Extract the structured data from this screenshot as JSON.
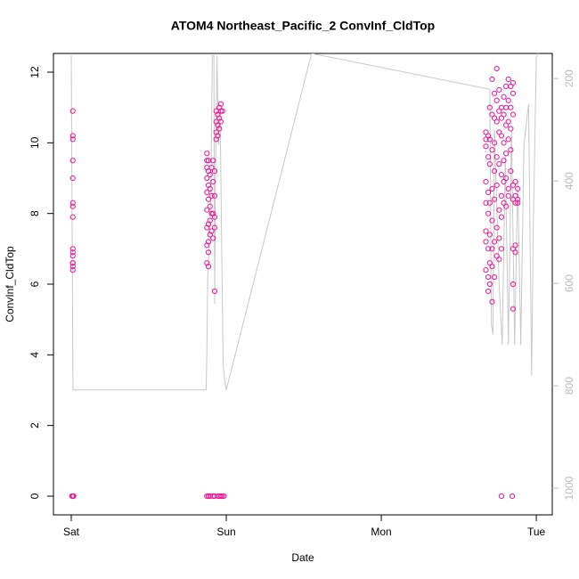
{
  "chart_data": {
    "type": "scatter",
    "title": "ATOM4 Northeast_Pacific_2 ConvInf_CldTop",
    "x_label": "Date",
    "y_label": "ConvInf_CldTop",
    "xlim": [
      -0.115,
      3.103
    ],
    "xticks": [
      {
        "value": 0,
        "label": "Sat"
      },
      {
        "value": 1,
        "label": "Sun"
      },
      {
        "value": 2,
        "label": "Mon"
      },
      {
        "value": 3,
        "label": "Tue"
      }
    ],
    "ylim": [
      -0.53,
      12.53
    ],
    "yticks": [
      0,
      2,
      4,
      6,
      8,
      10,
      12
    ],
    "y2lim": [
      1052,
      151
    ],
    "y2ticks": [
      200,
      400,
      600,
      800,
      1000
    ],
    "series": [
      {
        "color": "#ee1493",
        "x": [
          0.01,
          0.01,
          0.01,
          0.01,
          0.01,
          0.01,
          0.01,
          0.01,
          0.01,
          0.01,
          0.01,
          0.01,
          0.01,
          0.01,
          0.01,
          0.005,
          0.01,
          0.015,
          0.875,
          0.875,
          0.875,
          0.875,
          0.875,
          0.875,
          0.875,
          0.875,
          0.875,
          0.875,
          0.885,
          0.885,
          0.885,
          0.885,
          0.885,
          0.885,
          0.885,
          0.885,
          0.885,
          0.895,
          0.895,
          0.895,
          0.895,
          0.895,
          0.895,
          0.905,
          0.905,
          0.905,
          0.905,
          0.915,
          0.915,
          0.915,
          0.915,
          0.915,
          0.925,
          0.925,
          0.925,
          0.925,
          0.925,
          0.925,
          0.935,
          0.935,
          0.935,
          0.935,
          0.945,
          0.945,
          0.945,
          0.945,
          0.955,
          0.955,
          0.955,
          0.955,
          0.965,
          0.965,
          0.965,
          0.965,
          0.975,
          0.975,
          0.985,
          2.675,
          2.675,
          2.675,
          2.675,
          2.675,
          2.675,
          2.675,
          2.675,
          2.69,
          2.69,
          2.69,
          2.69,
          2.69,
          2.69,
          2.69,
          2.7,
          2.7,
          2.7,
          2.7,
          2.7,
          2.7,
          2.7,
          2.715,
          2.715,
          2.715,
          2.715,
          2.715,
          2.715,
          2.715,
          2.715,
          2.73,
          2.73,
          2.73,
          2.73,
          2.73,
          2.73,
          2.73,
          2.745,
          2.745,
          2.745,
          2.745,
          2.745,
          2.745,
          2.745,
          2.76,
          2.76,
          2.76,
          2.76,
          2.76,
          2.76,
          2.76,
          2.775,
          2.775,
          2.775,
          2.775,
          2.775,
          2.775,
          2.775,
          2.775,
          2.79,
          2.79,
          2.79,
          2.79,
          2.79,
          2.79,
          2.805,
          2.805,
          2.805,
          2.805,
          2.805,
          2.805,
          2.82,
          2.82,
          2.82,
          2.82,
          2.82,
          2.82,
          2.835,
          2.835,
          2.835,
          2.835,
          2.835,
          2.845,
          2.85,
          2.85,
          2.85,
          2.85,
          2.85,
          2.85,
          2.85,
          2.85,
          2.865,
          2.865,
          2.865,
          2.865,
          2.865,
          2.88,
          2.88,
          2.88
        ],
        "values": [
          10.9,
          10.2,
          10.1,
          9.5,
          9.0,
          8.3,
          8.2,
          7.9,
          7.0,
          6.9,
          6.8,
          6.6,
          6.5,
          6.4,
          6.6,
          0,
          0,
          0,
          9.7,
          9.5,
          9.3,
          9.0,
          8.6,
          8.1,
          7.6,
          7.1,
          6.6,
          0,
          9.5,
          9.2,
          8.8,
          8.4,
          7.7,
          7.2,
          6.9,
          6.5,
          0,
          9.1,
          8.7,
          8.2,
          7.8,
          7.4,
          0,
          9.3,
          8.5,
          8.0,
          7.5,
          9.5,
          8.9,
          8.0,
          7.3,
          0,
          9.2,
          8.5,
          7.9,
          7.6,
          5.8,
          0,
          10.3,
          10.6,
          10.9,
          10.1,
          10.8,
          10.5,
          10.2,
          0,
          11.0,
          10.7,
          10.4,
          0,
          11.1,
          10.9,
          10.6,
          0,
          10.9,
          0,
          0,
          10.3,
          10.1,
          9.9,
          8.9,
          8.3,
          7.5,
          7.2,
          6.4,
          10.2,
          9.6,
          8.6,
          8.0,
          7.0,
          6.2,
          5.8,
          11.0,
          10.1,
          9.4,
          8.3,
          7.4,
          6.6,
          6.0,
          11.8,
          10.8,
          9.8,
          8.7,
          7.8,
          7.0,
          6.5,
          5.5,
          11.4,
          10.7,
          10.0,
          9.2,
          8.4,
          7.2,
          6.2,
          12.1,
          11.2,
          10.6,
          9.6,
          8.8,
          7.6,
          6.8,
          11.5,
          10.9,
          10.3,
          9.4,
          8.1,
          7.3,
          6.7,
          11.0,
          10.7,
          10.2,
          9.1,
          8.5,
          7.9,
          7.0,
          0,
          11.3,
          10.8,
          10.0,
          9.5,
          8.9,
          8.3,
          11.6,
          11.0,
          10.5,
          9.7,
          9.0,
          8.2,
          11.8,
          11.2,
          10.6,
          10.1,
          8.7,
          8.5,
          11.6,
          11.0,
          10.4,
          9.8,
          9.2,
          0,
          11.7,
          11.4,
          10.8,
          8.8,
          8.4,
          7.0,
          6.0,
          5.3,
          8.9,
          8.5,
          8.3,
          7.1,
          6.9,
          8.7,
          8.4,
          8.3
        ]
      },
      {
        "type": "line",
        "axis": "y2",
        "color": "#c8c8c8",
        "x": [
          0.0,
          0.011,
          0.87,
          0.875,
          0.88,
          0.89,
          0.9,
          0.91,
          0.92,
          0.925,
          0.93,
          0.94,
          0.95,
          0.96,
          0.97,
          0.98,
          0.99,
          1.0,
          1.55,
          2.7,
          2.71,
          2.72,
          2.73,
          2.76,
          2.78,
          2.8,
          2.82,
          2.84,
          2.86,
          2.88,
          2.9,
          2.92,
          2.95,
          2.97,
          2.98,
          3.0,
          3.01
        ],
        "values": [
          155,
          808,
          808,
          730,
          590,
          520,
          430,
          155,
          155,
          640,
          400,
          155,
          330,
          260,
          520,
          760,
          790,
          808,
          151,
          221,
          680,
          700,
          300,
          600,
          720,
          350,
          720,
          300,
          720,
          400,
          720,
          330,
          250,
          780,
          500,
          160,
          151
        ]
      }
    ]
  }
}
